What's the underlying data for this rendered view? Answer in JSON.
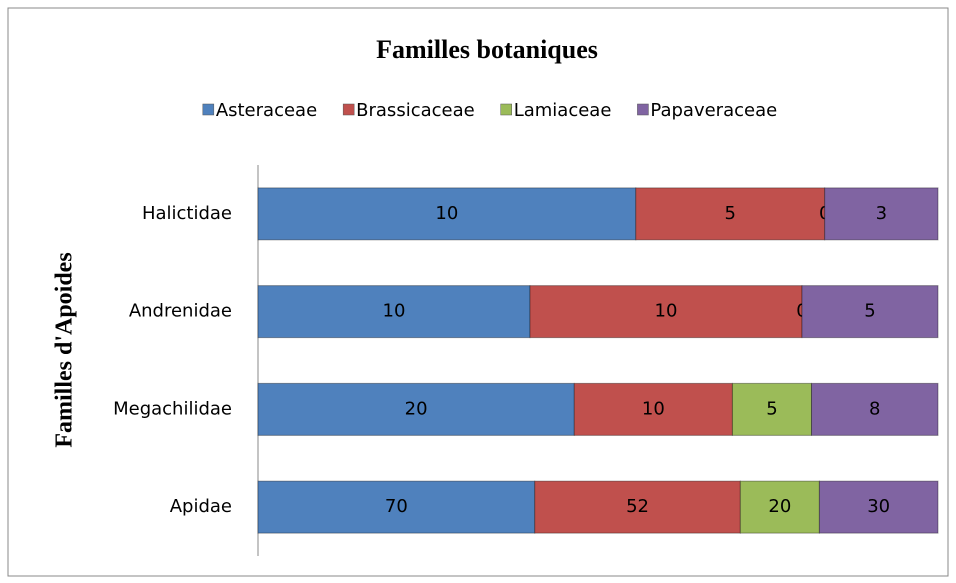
{
  "chart_data": {
    "type": "bar",
    "orientation": "horizontal",
    "stacking": "percent",
    "title": "Familles botaniques",
    "y_label": "Familles d'Apoides",
    "legend": "top",
    "categories": [
      "Apidae",
      "Megachilidae",
      "Andrenidae",
      "Halictidae"
    ],
    "series": [
      {
        "name": "Asteraceae",
        "color": "#4f81bd",
        "values": [
          70,
          20,
          10,
          10
        ]
      },
      {
        "name": "Brassicaceae",
        "color": "#c0504d",
        "values": [
          52,
          10,
          10,
          5
        ]
      },
      {
        "name": "Lamiaceae",
        "color": "#9bbb59",
        "values": [
          20,
          5,
          0,
          0
        ]
      },
      {
        "name": "Papaveraceae",
        "color": "#8064a2",
        "values": [
          30,
          8,
          5,
          3
        ]
      }
    ]
  }
}
